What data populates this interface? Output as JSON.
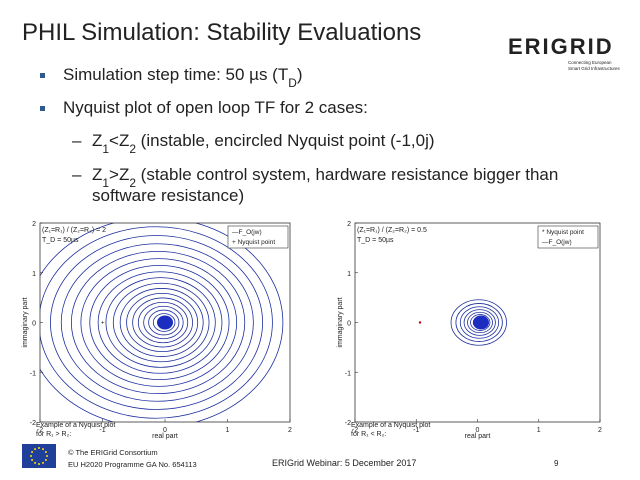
{
  "header": {
    "title": "PHIL Simulation: Stability Evaluations",
    "logo": "ERIGRID",
    "logo_tagline": [
      "Connecting European",
      "Smart Grid Infrastructures"
    ]
  },
  "bullets": [
    {
      "parts": [
        "Simulation step time: 50 µs (T",
        "D",
        ")"
      ]
    },
    {
      "parts": [
        "Nyquist plot of open loop TF for 2 cases:"
      ]
    }
  ],
  "sub_bullets": [
    {
      "parts": [
        "Z",
        "1",
        "<Z",
        "2",
        " (instable, encircled Nyquist point (-1,0j)"
      ]
    },
    {
      "parts": [
        "Z",
        "1",
        ">Z",
        "2",
        " (stable control system, hardware resistance bigger than"
      ],
      "continuation": "software resistance)"
    }
  ],
  "plots": [
    {
      "annotation": [
        "(Z₁=R₁) / (Z₂=R₂) = 2",
        "T_D = 50µs"
      ],
      "legend": [
        "—F_O(jw)",
        "+ Nyquist point"
      ],
      "xlabel": "real part",
      "ylabel": "immaginary part",
      "xticks": [
        "-2",
        "-1",
        "0",
        "1",
        "2"
      ],
      "yticks": [
        "2",
        "1",
        "0",
        "-1",
        "-2"
      ],
      "caption": [
        "Example of a Nyquist plot",
        "for R₁ > R₂:"
      ]
    },
    {
      "annotation": [
        "(Z₁=R₁) / (Z₂=R₂) = 0.5",
        "T_D = 50µs"
      ],
      "legend": [
        "* Nyquist point",
        "—F_O(jw)"
      ],
      "xlabel": "real part",
      "ylabel": "immaginary part",
      "xticks": [
        "-2",
        "-1",
        "0",
        "1",
        "2"
      ],
      "yticks": [
        "2",
        "1",
        "0",
        "-1",
        "-2"
      ],
      "caption": [
        "Example of a Nyquist plot",
        "for R₁ < R₂:"
      ]
    }
  ],
  "footer": {
    "copyright": "© The ERIGrid Consortium",
    "programme": "EU H2020 Programme GA No. 654113",
    "event": "ERIGrid Webinar:  5 December 2017",
    "page": "9"
  }
}
